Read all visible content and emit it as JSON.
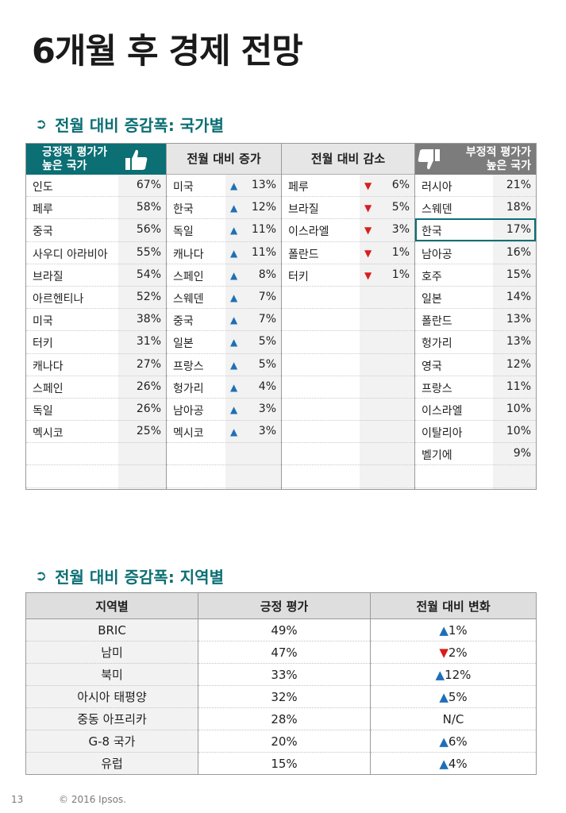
{
  "title": "6개월 후 경제 전망",
  "section1_title": "전월 대비 증감폭: 국가별",
  "section2_title": "전월 대비 증감폭: 지역별",
  "colors": {
    "accent": "#0b6f74",
    "up": "#1f6fb8",
    "down": "#d81e1e",
    "neg_header": "#7c7c7c"
  },
  "icons": {
    "section_arrow": "arrow-circle-right-icon",
    "positive": "thumbs-up-icon",
    "negative": "thumbs-down-icon",
    "up": "triangle-up-icon",
    "down": "triangle-down-icon"
  },
  "positive": {
    "header_line1": "긍정적 평가가",
    "header_line2": "높은 국가",
    "rows": [
      {
        "name": "인도",
        "value": "67%"
      },
      {
        "name": "페루",
        "value": "58%"
      },
      {
        "name": "중국",
        "value": "56%"
      },
      {
        "name": "사우디 아라비아",
        "value": "55%"
      },
      {
        "name": "브라질",
        "value": "54%"
      },
      {
        "name": "아르헨티나",
        "value": "52%"
      },
      {
        "name": "미국",
        "value": "38%"
      },
      {
        "name": "터키",
        "value": "31%"
      },
      {
        "name": "캐나다",
        "value": "27%"
      },
      {
        "name": "스페인",
        "value": "26%"
      },
      {
        "name": "독일",
        "value": "26%"
      },
      {
        "name": "멕시코",
        "value": "25%"
      }
    ]
  },
  "increase": {
    "header": "전월 대비 증가",
    "rows": [
      {
        "name": "미국",
        "value": "13%"
      },
      {
        "name": "한국",
        "value": "12%"
      },
      {
        "name": "독일",
        "value": "11%"
      },
      {
        "name": "캐나다",
        "value": "11%"
      },
      {
        "name": "스페인",
        "value": "8%"
      },
      {
        "name": "스웨덴",
        "value": "7%"
      },
      {
        "name": "중국",
        "value": "7%"
      },
      {
        "name": "일본",
        "value": "5%"
      },
      {
        "name": "프랑스",
        "value": "5%"
      },
      {
        "name": "헝가리",
        "value": "4%"
      },
      {
        "name": "남아공",
        "value": "3%"
      },
      {
        "name": "멕시코",
        "value": "3%"
      }
    ]
  },
  "decrease": {
    "header": "전월 대비 감소",
    "rows": [
      {
        "name": "페루",
        "value": "6%"
      },
      {
        "name": "브라질",
        "value": "5%"
      },
      {
        "name": "이스라엘",
        "value": "3%"
      },
      {
        "name": "폴란드",
        "value": "1%"
      },
      {
        "name": "터키",
        "value": "1%"
      }
    ]
  },
  "negative": {
    "header_line1": "부정적 평가가",
    "header_line2": "높은 국가",
    "highlight_index": 2,
    "rows": [
      {
        "name": "러시아",
        "value": "21%"
      },
      {
        "name": "스웨덴",
        "value": "18%"
      },
      {
        "name": "한국",
        "value": "17%"
      },
      {
        "name": "남아공",
        "value": "16%"
      },
      {
        "name": "호주",
        "value": "15%"
      },
      {
        "name": "일본",
        "value": "14%"
      },
      {
        "name": "폴란드",
        "value": "13%"
      },
      {
        "name": "헝가리",
        "value": "13%"
      },
      {
        "name": "영국",
        "value": "12%"
      },
      {
        "name": "프랑스",
        "value": "11%"
      },
      {
        "name": "이스라엘",
        "value": "10%"
      },
      {
        "name": "이탈리아",
        "value": "10%"
      },
      {
        "name": "벨기에",
        "value": "9%"
      }
    ]
  },
  "region_table": {
    "headers": [
      "지역별",
      "긍정 평가",
      "전월 대비 변화"
    ],
    "rows": [
      {
        "region": "BRIC",
        "positive": "49%",
        "dir": "up",
        "change": "1%"
      },
      {
        "region": "남미",
        "positive": "47%",
        "dir": "down",
        "change": "2%"
      },
      {
        "region": "북미",
        "positive": "33%",
        "dir": "up",
        "change": "12%"
      },
      {
        "region": "아시아 태평양",
        "positive": "32%",
        "dir": "up",
        "change": "5%"
      },
      {
        "region": "중동 아프리카",
        "positive": "28%",
        "dir": "none",
        "change": "N/C"
      },
      {
        "region": "G-8 국가",
        "positive": "20%",
        "dir": "up",
        "change": "6%"
      },
      {
        "region": "유럽",
        "positive": "15%",
        "dir": "up",
        "change": "4%"
      }
    ]
  },
  "footer": {
    "page": "13",
    "copyright": "© 2016 Ipsos."
  }
}
